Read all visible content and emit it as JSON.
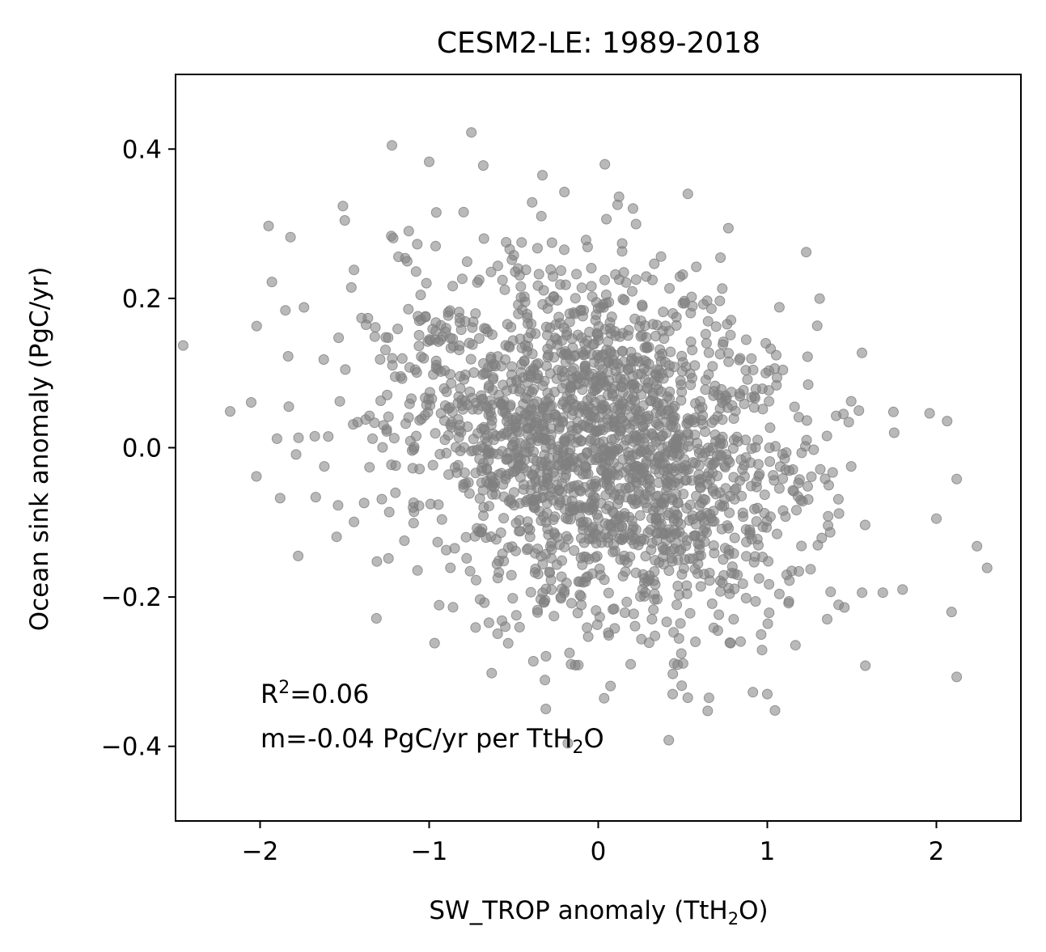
{
  "chart_data": {
    "type": "scatter",
    "title": "CESM2-LE: 1989-2018",
    "xlabel_main": "SW_TROP anomaly (TtH",
    "xlabel_sub": "2",
    "xlabel_tail": "O)",
    "ylabel": "Ocean sink anomaly (PgC/yr)",
    "xlim": [
      -2.5,
      2.5
    ],
    "ylim": [
      -0.5,
      0.5
    ],
    "xticks": [
      -2,
      -1,
      0,
      1,
      2
    ],
    "xtick_labels": [
      "−2",
      "−1",
      "0",
      "1",
      "2"
    ],
    "yticks": [
      -0.4,
      -0.2,
      0.0,
      0.2,
      0.4
    ],
    "ytick_labels": [
      "−0.4",
      "−0.2",
      "0.0",
      "0.2",
      "0.4"
    ],
    "grid": false,
    "marker_color": "#808080",
    "marker_alpha": 0.55,
    "annotation": {
      "r2_prefix": "R",
      "r2_sup": "2",
      "r2_value": "=0.06",
      "slope_main": "m=-0.04 PgC/yr per TtH",
      "slope_sub": "2",
      "slope_tail": "O"
    },
    "sample": {
      "n": 2000,
      "x_mean": 0.0,
      "x_sd": 0.62,
      "y_mean": 0.0,
      "y_sd": 0.115,
      "slope": -0.04
    },
    "outliers": [
      {
        "x": -1.22,
        "y": 0.405
      },
      {
        "x": -2.02,
        "y": 0.163
      },
      {
        "x": -1.95,
        "y": 0.297
      },
      {
        "x": -1.93,
        "y": 0.222
      },
      {
        "x": -1.82,
        "y": 0.282
      },
      {
        "x": -1.85,
        "y": 0.184
      },
      {
        "x": -1.74,
        "y": 0.188
      },
      {
        "x": -1.83,
        "y": 0.055
      },
      {
        "x": -1.9,
        "y": 0.012
      },
      {
        "x": -1.62,
        "y": -0.025
      },
      {
        "x": -1.0,
        "y": 0.383
      },
      {
        "x": -0.68,
        "y": 0.378
      },
      {
        "x": -0.33,
        "y": 0.365
      },
      {
        "x": 0.53,
        "y": 0.34
      },
      {
        "x": 0.77,
        "y": 0.294
      },
      {
        "x": 1.23,
        "y": 0.262
      },
      {
        "x": 1.96,
        "y": 0.046
      },
      {
        "x": 2.12,
        "y": -0.042
      },
      {
        "x": 2.24,
        "y": -0.132
      },
      {
        "x": 2.3,
        "y": -0.161
      },
      {
        "x": 2.09,
        "y": -0.22
      },
      {
        "x": 2.12,
        "y": -0.307
      },
      {
        "x": 1.58,
        "y": -0.292
      },
      {
        "x": 1.0,
        "y": -0.33
      },
      {
        "x": 0.44,
        "y": -0.33
      },
      {
        "x": -0.31,
        "y": -0.35
      },
      {
        "x": -0.63,
        "y": -0.302
      },
      {
        "x": 1.56,
        "y": 0.127
      },
      {
        "x": 1.75,
        "y": 0.02
      },
      {
        "x": 2.0,
        "y": -0.095
      },
      {
        "x": 1.8,
        "y": -0.19
      }
    ]
  }
}
